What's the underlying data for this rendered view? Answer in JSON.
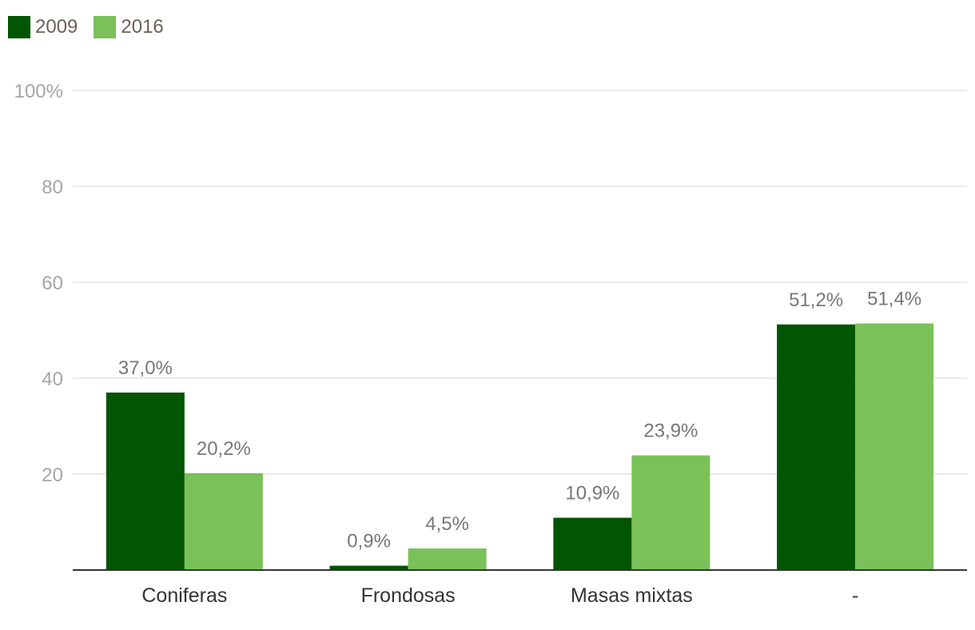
{
  "chart_data": {
    "type": "bar",
    "categories": [
      "Coniferas",
      "Frondosas",
      "Masas mixtas",
      "-"
    ],
    "series": [
      {
        "name": "2009",
        "values": [
          37.0,
          0.9,
          10.9,
          51.2
        ],
        "labels": [
          "37,0%",
          "0,9%",
          "10,9%",
          "51,2%"
        ],
        "color": "#025502"
      },
      {
        "name": "2016",
        "values": [
          20.2,
          4.5,
          23.9,
          51.4
        ],
        "labels": [
          "20,2%",
          "4,5%",
          "23,9%",
          "51,4%"
        ],
        "color": "#79c158"
      }
    ],
    "ylim": [
      0,
      100
    ],
    "yticks": [
      20,
      40,
      60,
      80,
      100
    ],
    "ytick_labels": [
      "20",
      "40",
      "60",
      "80",
      "100%"
    ],
    "title": "",
    "xlabel": "",
    "ylabel": "",
    "grid": true,
    "legend_position": "top-left",
    "gridline_color": "#e3e3e3",
    "axis_color": "#333333"
  }
}
